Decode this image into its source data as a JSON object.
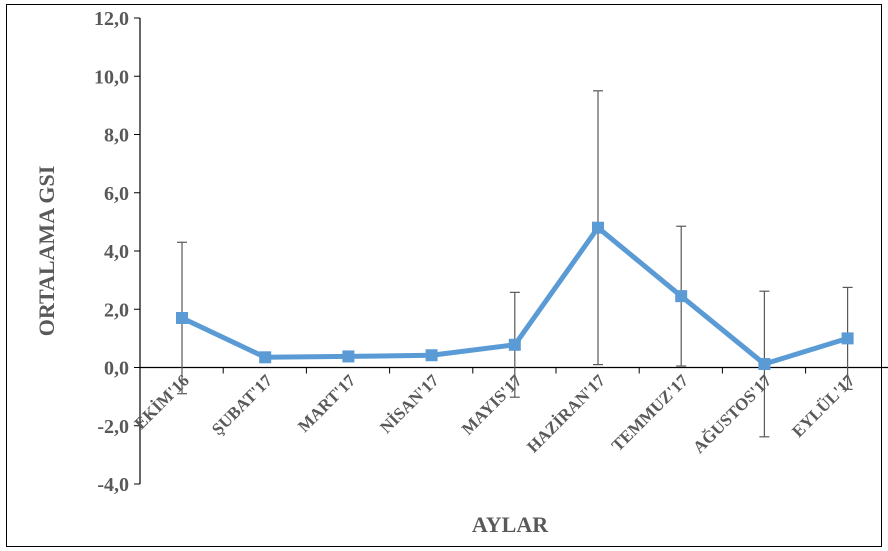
{
  "chart_data": {
    "type": "line",
    "xlabel": "AYLAR",
    "ylabel": "ORTALAMA GSI",
    "ylim": [
      -4.0,
      12.0
    ],
    "y_ticks": [
      "-4,0",
      "-2,0",
      "0,0",
      "2,0",
      "4,0",
      "6,0",
      "8,0",
      "10,0",
      "12,0"
    ],
    "categories": [
      "EKİM'16",
      "ŞUBAT'17",
      "MART'17",
      "NİSAN'17",
      "MAYIS'17",
      "HAZİRAN'17",
      "TEMMUZ'17",
      "AĞUSTOS'17",
      "EYLÜL'17"
    ],
    "series": [
      {
        "values": [
          1.7,
          0.35,
          0.38,
          0.42,
          0.78,
          4.8,
          2.45,
          0.12,
          1.0
        ],
        "error": [
          2.6,
          0.0,
          0.0,
          0.0,
          1.8,
          4.7,
          2.4,
          2.5,
          1.75
        ],
        "color": "#5B9BD5"
      }
    ],
    "grid": false,
    "legend": "none"
  }
}
